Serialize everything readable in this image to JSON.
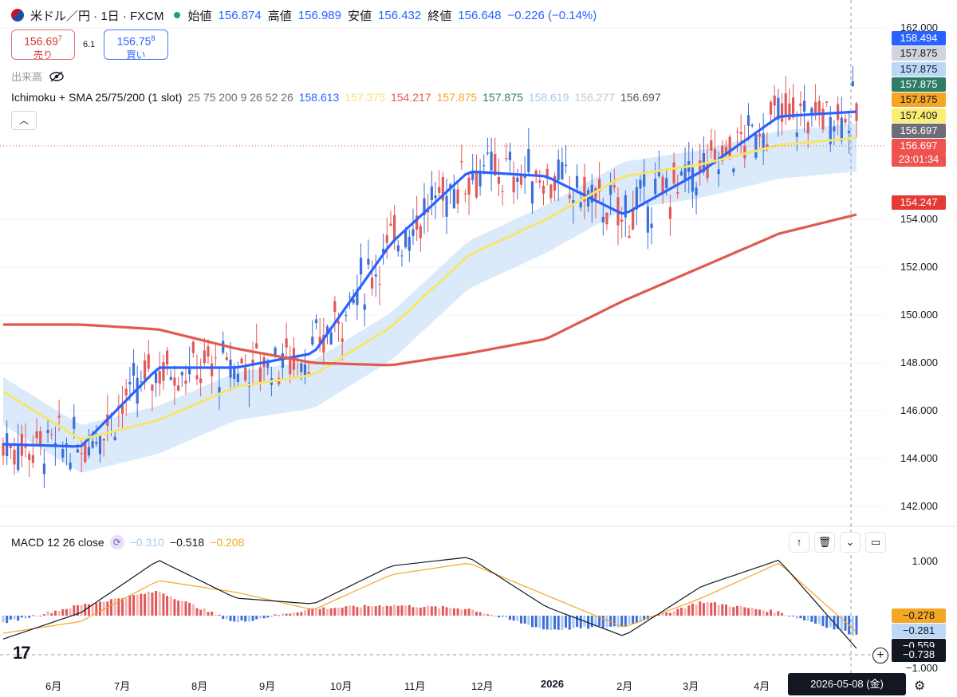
{
  "header": {
    "symbol": "米ドル／円 · 1日 · FXCM",
    "open_label": "始値",
    "open": "156.874",
    "high_label": "高値",
    "high": "156.989",
    "low_label": "安値",
    "low": "156.432",
    "close_label": "終値",
    "close": "156.648",
    "change": "−0.226 (−0.14%)"
  },
  "trade": {
    "sell_price": "156.69",
    "sell_sup": "7",
    "sell_label": "売り",
    "spread": "6.1",
    "buy_price": "156.75",
    "buy_sup": "8",
    "buy_label": "買い"
  },
  "volume_label": "出来高",
  "ichimoku": {
    "title": "Ichimoku + SMA 25/75/200 (1 slot)",
    "params": "25 75 200 9 26 52 26",
    "values": [
      {
        "text": "158.613",
        "color": "#2962ff"
      },
      {
        "text": "157.375",
        "color": "#f3e27a"
      },
      {
        "text": "154.217",
        "color": "#e05a4f"
      },
      {
        "text": "157.875",
        "color": "#f5a623"
      },
      {
        "text": "157.875",
        "color": "#2f7d65"
      },
      {
        "text": "158.619",
        "color": "#a9c8f0"
      },
      {
        "text": "156.277",
        "color": "#c9c9c9"
      },
      {
        "text": "156.697",
        "color": "#555555"
      }
    ]
  },
  "macd": {
    "title": "MACD 12 26 close",
    "v1": "−0.310",
    "v1_color": "#a9c8f0",
    "v2": "−0.518",
    "v2_color": "#131722",
    "v3": "−0.208",
    "v3_color": "#f5a623",
    "toolbar_icons": [
      "arrow-up-icon",
      "trash-icon",
      "collapse-icon",
      "maximize-icon"
    ]
  },
  "price_axis": {
    "ticks": [
      "162.000",
      "154.000",
      "152.000",
      "150.000",
      "148.000",
      "146.000",
      "144.000",
      "142.000"
    ],
    "tags": [
      {
        "text": "158.494",
        "bg": "#2962ff",
        "fg": "#ffffff"
      },
      {
        "text": "157.875",
        "bg": "#d1d4dc",
        "fg": "#131722"
      },
      {
        "text": "157.875",
        "bg": "#bbd9f7",
        "fg": "#131722"
      },
      {
        "text": "157.875",
        "bg": "#2f7d65",
        "fg": "#ffffff"
      },
      {
        "text": "157.875",
        "bg": "#f5a623",
        "fg": "#131722"
      },
      {
        "text": "157.409",
        "bg": "#fdee72",
        "fg": "#131722"
      },
      {
        "text": "156.697",
        "bg": "#6b6e76",
        "fg": "#ffffff"
      },
      {
        "text": "156.697",
        "bg": "#ef5350",
        "fg": "#ffffff"
      },
      {
        "text": "23:01:34",
        "bg": "#ef5350",
        "fg": "#ffffff"
      },
      {
        "text": "154.247",
        "bg": "#e53935",
        "fg": "#ffffff"
      }
    ]
  },
  "macd_axis": {
    "ticks": [
      "1.000",
      "−1.000"
    ],
    "tags": [
      {
        "text": "−0.278",
        "bg": "#f5a623",
        "fg": "#131722"
      },
      {
        "text": "−0.281",
        "bg": "#bbd9f7",
        "fg": "#131722"
      },
      {
        "text": "−0.559",
        "bg": "#131722",
        "fg": "#ffffff"
      },
      {
        "text": "−0.738",
        "bg": "#131722",
        "fg": "#ffffff"
      }
    ]
  },
  "time_axis": {
    "labels": [
      "6月",
      "7月",
      "8月",
      "9月",
      "10月",
      "11月",
      "12月",
      "2026",
      "2月",
      "3月",
      "4月"
    ],
    "cursor_date": "2026-05-08 (金)"
  },
  "chart_data": {
    "type": "line",
    "title": "米ドル／円 · 1日 · FXCM",
    "x": [
      "2025-06",
      "2025-07",
      "2025-08",
      "2025-09",
      "2025-10",
      "2025-11",
      "2025-12",
      "2026-01",
      "2026-02",
      "2026-03",
      "2026-04",
      "2026-05"
    ],
    "ylim": [
      141.5,
      162.5
    ],
    "series": [
      {
        "name": "SMA 25",
        "color": "#2962ff",
        "values": [
          144.6,
          144.5,
          147.8,
          147.8,
          148.4,
          153.0,
          156.0,
          155.8,
          154.2,
          156.0,
          158.3,
          158.5
        ]
      },
      {
        "name": "SMA 75",
        "color": "#f5e56b",
        "values": [
          146.8,
          144.8,
          145.6,
          147.0,
          147.5,
          149.5,
          152.5,
          154.0,
          155.8,
          156.3,
          157.1,
          157.4
        ]
      },
      {
        "name": "SMA 200",
        "color": "#e05a4f",
        "values": [
          149.6,
          149.6,
          149.4,
          148.6,
          148.0,
          147.9,
          148.4,
          149.0,
          150.6,
          152.0,
          153.4,
          154.2
        ]
      }
    ],
    "macd": {
      "ylim": [
        -1.05,
        1.05
      ],
      "macd_line": [
        -0.4,
        0.05,
        0.95,
        0.3,
        0.2,
        0.85,
        1.0,
        0.15,
        -0.35,
        0.5,
        0.95,
        -0.56
      ],
      "signal_line": [
        -0.3,
        -0.1,
        0.6,
        0.4,
        0.1,
        0.7,
        0.9,
        0.35,
        -0.2,
        0.3,
        0.9,
        -0.28
      ]
    }
  }
}
